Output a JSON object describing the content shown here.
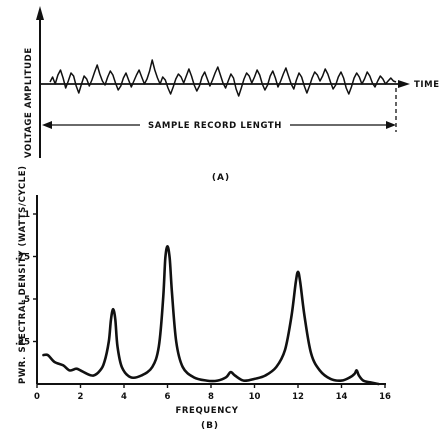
{
  "chart_data": [
    {
      "type": "line",
      "title": "",
      "ylabel": "VOLTAGE AMPLITUDE",
      "xlabel": "TIME",
      "annotation": "SAMPLE RECORD LENGTH",
      "caption": "(A)",
      "description_values": "random time signal, no numeric axes",
      "series": [
        {
          "values": [
            0,
            0.25,
            -0.1,
            0.35,
            0.6,
            0.2,
            -0.3,
            0.05,
            0.45,
            0.3,
            -0.2,
            -0.55,
            -0.1,
            0.3,
            0.15,
            -0.2,
            0.1,
            0.5,
            0.85,
            0.4,
            0.05,
            -0.15,
            0.25,
            0.55,
            0.35,
            -0.05,
            -0.4,
            -0.2,
            0.2,
            0.45,
            0.1,
            -0.25,
            0.05,
            0.35,
            0.6,
            0.25,
            -0.1,
            0.15,
            0.55,
            1.1,
            0.6,
            0.2,
            -0.1,
            0.25,
            0.1,
            -0.3,
            -0.6,
            -0.25,
            0.15,
            0.4,
            0.25,
            -0.05,
            0.3,
            0.65,
            0.3,
            -0.15,
            -0.45,
            -0.2,
            0.25,
            0.5,
            0.15,
            -0.2,
            0.1,
            0.45,
            0.75,
            0.35,
            -0.05,
            -0.3,
            0.05,
            0.4,
            0.2,
            -0.35,
            -0.7,
            -0.3,
            0.15,
            0.45,
            0.3,
            -0.05,
            0.25,
            0.6,
            0.35,
            -0.1,
            -0.4,
            -0.15,
            0.3,
            0.55,
            0.2,
            -0.25,
            0.05,
            0.4,
            0.7,
            0.3,
            -0.1,
            -0.35,
            0.1,
            0.45,
            0.25,
            -0.2,
            -0.55,
            -0.2,
            0.2,
            0.5,
            0.35,
            0.05,
            0.3,
            0.65,
            0.4,
            0,
            -0.35,
            -0.15,
            0.25,
            0.5,
            0.2,
            -0.3,
            -0.6,
            -0.25,
            0.2,
            0.45,
            0.25,
            -0.1,
            0.15,
            0.5,
            0.3,
            -0.05,
            -0.25,
            0.05,
            0.3,
            0.15,
            -0.1,
            0.05,
            0.2,
            0.05,
            0
          ]
        }
      ]
    },
    {
      "type": "line",
      "title": "",
      "xlabel": "FREQUENCY",
      "ylabel": "PWR. SPECTRAL DENSITY (WATTS/CYCLE)",
      "caption": "(B)",
      "xlim": [
        0,
        16
      ],
      "ylim": [
        0,
        1
      ],
      "xticks": [
        "0",
        "2",
        "4",
        "6",
        "8",
        "10",
        "12",
        "14",
        "16"
      ],
      "yticks": [
        ".25",
        ".5",
        ".75",
        "1"
      ],
      "x": [
        0.3,
        0.5,
        0.8,
        1.2,
        1.5,
        1.8,
        2.0,
        2.3,
        2.6,
        2.9,
        3.1,
        3.3,
        3.4,
        3.5,
        3.6,
        3.7,
        3.9,
        4.3,
        4.8,
        5.3,
        5.6,
        5.8,
        5.9,
        6.0,
        6.1,
        6.2,
        6.4,
        6.7,
        7.2,
        7.8,
        8.3,
        8.7,
        8.9,
        9.1,
        9.5,
        10.0,
        10.5,
        11.0,
        11.4,
        11.7,
        11.9,
        12.0,
        12.1,
        12.3,
        12.6,
        13.0,
        13.5,
        14.0,
        14.4,
        14.6,
        14.7,
        14.8,
        15.0,
        15.3,
        15.7
      ],
      "series": [
        {
          "values": [
            0.17,
            0.17,
            0.13,
            0.11,
            0.08,
            0.09,
            0.08,
            0.06,
            0.05,
            0.08,
            0.13,
            0.25,
            0.38,
            0.44,
            0.38,
            0.22,
            0.1,
            0.04,
            0.05,
            0.1,
            0.22,
            0.5,
            0.74,
            0.81,
            0.74,
            0.55,
            0.25,
            0.1,
            0.04,
            0.02,
            0.02,
            0.04,
            0.07,
            0.05,
            0.02,
            0.03,
            0.05,
            0.1,
            0.2,
            0.4,
            0.6,
            0.66,
            0.6,
            0.4,
            0.18,
            0.08,
            0.03,
            0.02,
            0.04,
            0.06,
            0.08,
            0.05,
            0.02,
            0.01,
            0
          ]
        }
      ]
    }
  ]
}
